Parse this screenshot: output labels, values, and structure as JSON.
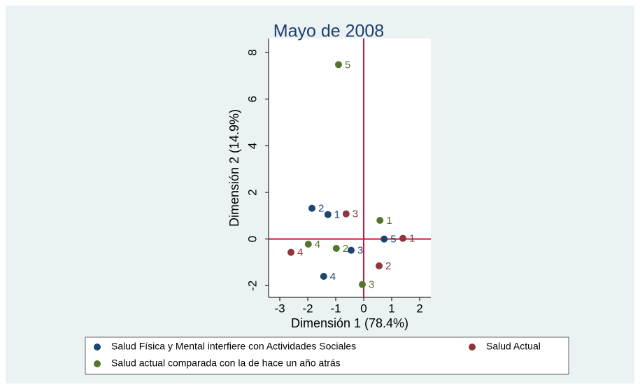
{
  "chart_data": {
    "type": "scatter",
    "title": "Mayo de 2008",
    "x_label": "Dimensión 1 (78.4%)",
    "y_label": "Dimensión 2 (14.9%)",
    "xlim": [
      -3.4,
      2.4
    ],
    "ylim": [
      -2.5,
      8.6
    ],
    "xticks": [
      -3,
      -2,
      -1,
      0,
      1,
      2
    ],
    "yticks": [
      -2,
      0,
      2,
      4,
      6,
      8
    ],
    "xline": 0,
    "yline": 0,
    "reference_color": "#d0103a",
    "series": [
      {
        "name": "Salud Física y Mental interfiere con Actividades Sociales",
        "color": "#1a476f",
        "x": [
          -1.28,
          -1.85,
          -0.45,
          -1.43,
          0.73
        ],
        "values": [
          1.05,
          1.32,
          -0.48,
          -1.6,
          0.0
        ],
        "labels": [
          "1",
          "2",
          "3",
          "4",
          "5"
        ]
      },
      {
        "name": "Salud Actual",
        "color": "#90353b",
        "x": [
          1.4,
          0.55,
          -0.63,
          -2.6
        ],
        "values": [
          0.03,
          -1.15,
          1.08,
          -0.57
        ],
        "labels": [
          "1",
          "2",
          "3",
          "4"
        ]
      },
      {
        "name": "Salud actual comparada con la de hace un año atrás",
        "color": "#55752f",
        "x": [
          0.58,
          -0.98,
          -0.05,
          -1.98,
          -0.9
        ],
        "values": [
          0.8,
          -0.4,
          -1.95,
          -0.22,
          7.48
        ],
        "labels": [
          "1",
          "2",
          "3",
          "4",
          "5"
        ]
      }
    ]
  }
}
